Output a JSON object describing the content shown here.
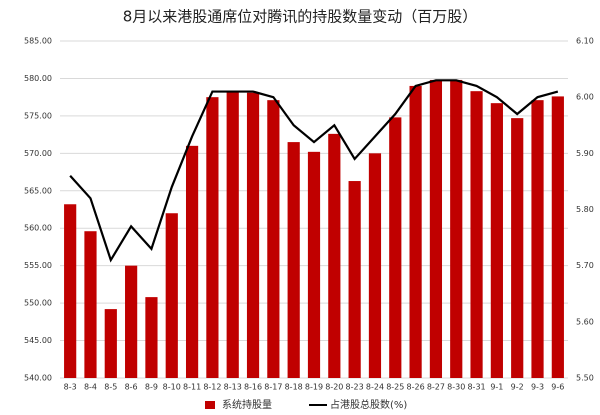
{
  "chart_data": {
    "type": "bar_line",
    "title": "8月以来港股通席位对腾讯的持股数量变动（百万股）",
    "categories": [
      "8-3",
      "8-4",
      "8-5",
      "8-6",
      "8-9",
      "8-10",
      "8-11",
      "8-12",
      "8-13",
      "8-16",
      "8-17",
      "8-18",
      "8-19",
      "8-20",
      "8-23",
      "8-24",
      "8-25",
      "8-26",
      "8-27",
      "8-30",
      "8-31",
      "9-1",
      "9-2",
      "9-3",
      "9-6"
    ],
    "series": [
      {
        "name": "系统持股量",
        "type": "bar",
        "color": "#c00000",
        "axis": "y",
        "values": [
          563.2,
          559.6,
          549.2,
          555.0,
          550.8,
          562.0,
          571.0,
          577.5,
          578.2,
          578.1,
          577.1,
          571.5,
          570.2,
          572.6,
          566.3,
          570.0,
          574.8,
          579.0,
          579.8,
          579.8,
          578.3,
          576.7,
          574.7,
          577.1,
          577.6
        ]
      },
      {
        "name": "占港股总股数(%)",
        "type": "line",
        "color": "#000000",
        "axis": "y2",
        "values": [
          5.86,
          5.82,
          5.71,
          5.77,
          5.73,
          5.84,
          5.93,
          6.01,
          6.01,
          6.01,
          6.0,
          5.95,
          5.92,
          5.95,
          5.89,
          5.93,
          5.97,
          6.02,
          6.03,
          6.03,
          6.02,
          6.0,
          5.97,
          6.0,
          6.01
        ]
      }
    ],
    "ylim": [
      540,
      585
    ],
    "yticks": [
      {
        "value": 540,
        "label": "540.00"
      },
      {
        "value": 545,
        "label": "545.00"
      },
      {
        "value": 550,
        "label": "550.00"
      },
      {
        "value": 555,
        "label": "555.00"
      },
      {
        "value": 560,
        "label": "560.00"
      },
      {
        "value": 565,
        "label": "565.00"
      },
      {
        "value": 570,
        "label": "570.00"
      },
      {
        "value": 575,
        "label": "575.00"
      },
      {
        "value": 580,
        "label": "580.00"
      },
      {
        "value": 585,
        "label": "585.00"
      }
    ],
    "y2lim": [
      5.5,
      6.1
    ],
    "y2ticks": [
      {
        "value": 5.5,
        "label": "5.50"
      },
      {
        "value": 5.6,
        "label": "5.60"
      },
      {
        "value": 5.7,
        "label": "5.70"
      },
      {
        "value": 5.8,
        "label": "5.80"
      },
      {
        "value": 5.9,
        "label": "5.90"
      },
      {
        "value": 6.0,
        "label": "6.00"
      },
      {
        "value": 6.1,
        "label": "6.10"
      }
    ],
    "grid": true
  }
}
